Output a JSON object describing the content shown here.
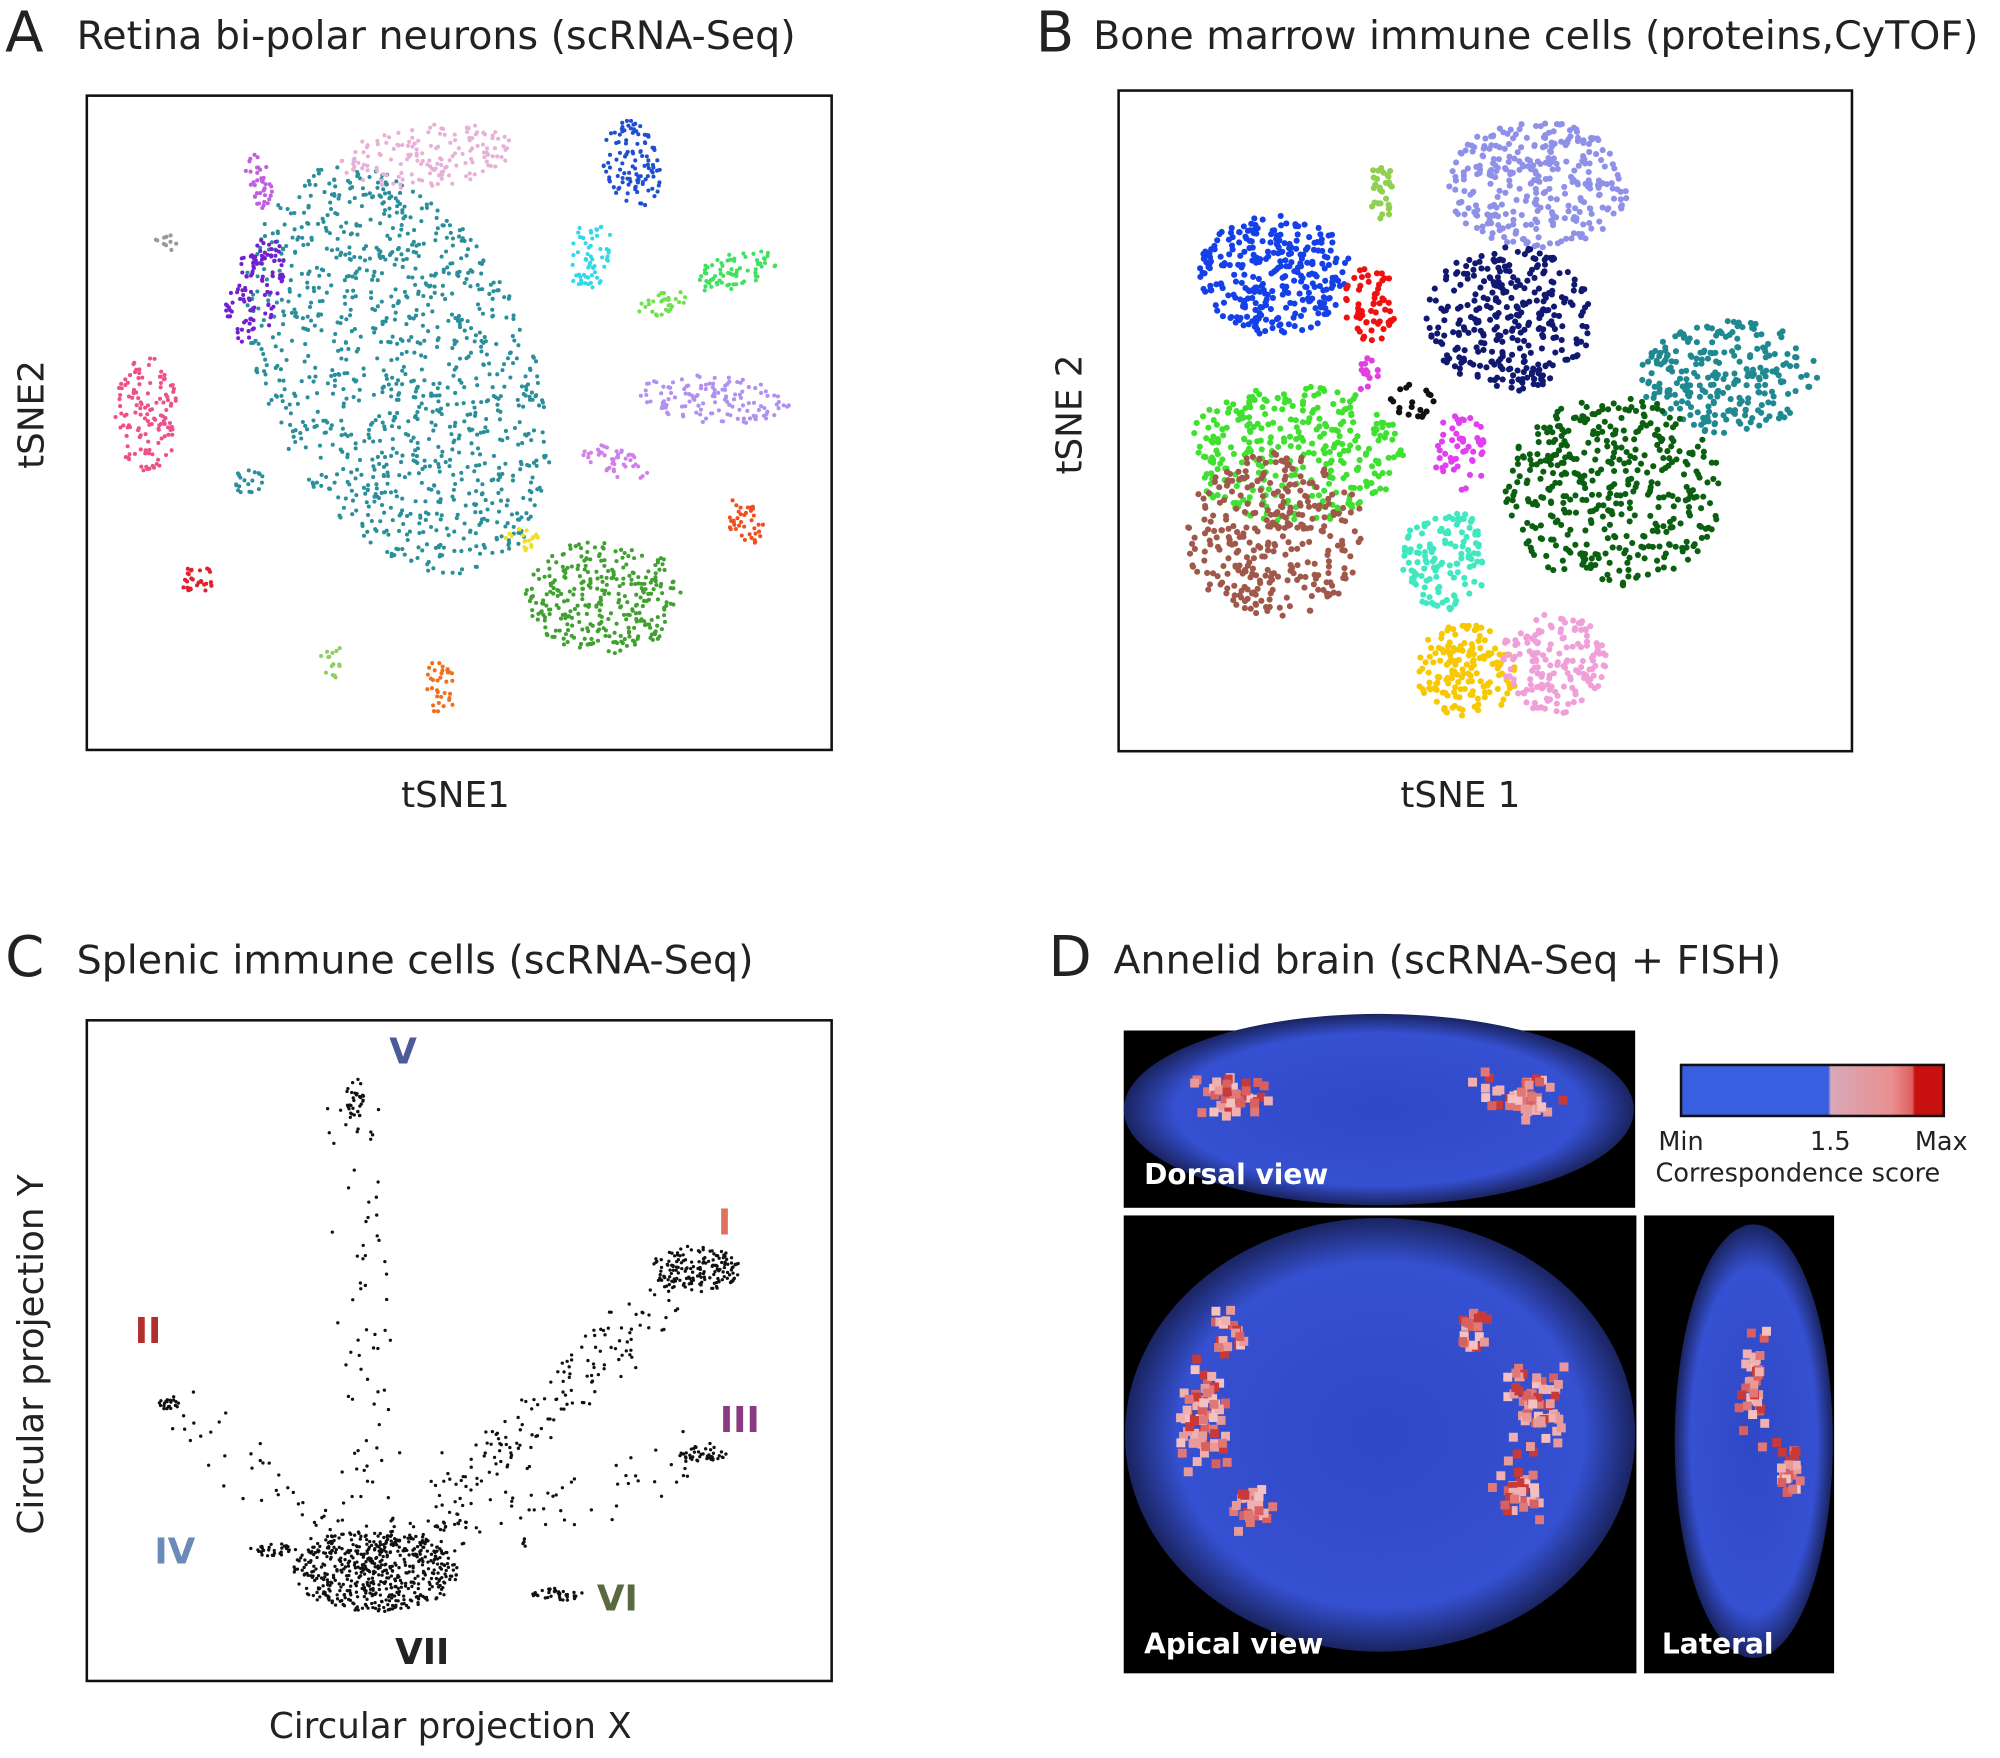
{
  "panels": [
    {
      "letter": "A",
      "title": "Retina bi-polar neurons (scRNA-Seq)",
      "x_label": "tSNE1",
      "y_label": "tSNE2"
    },
    {
      "letter": "B",
      "title": "Bone marrow immune cells (proteins,CyTOF)",
      "x_label": "tSNE 1",
      "y_label": "tSNE 2"
    },
    {
      "letter": "C",
      "title": "Splenic immune cells (scRNA-Seq)",
      "x_label": "Circular projection X",
      "y_label": "Circular projection Y",
      "cluster_labels": [
        "V",
        "I",
        "II",
        "III",
        "IV",
        "VI",
        "VII"
      ]
    },
    {
      "letter": "D",
      "title": "Annelid brain (scRNA-Seq + FISH)",
      "views": [
        "Dorsal view",
        "Apical view",
        "Lateral"
      ],
      "colorbar": {
        "ticks": [
          "Min",
          "1.5",
          "Max"
        ],
        "label": "Correspondence score"
      }
    }
  ]
}
